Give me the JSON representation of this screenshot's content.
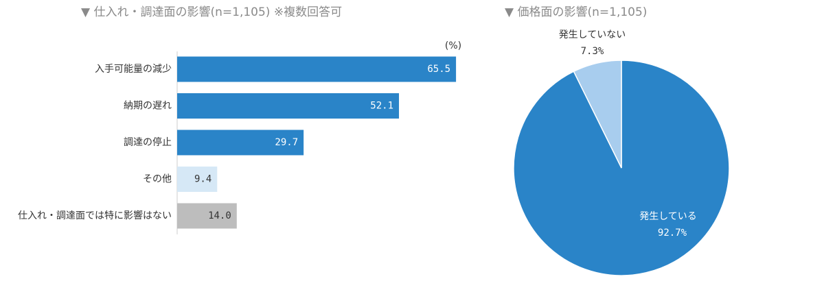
{
  "chart_data": [
    {
      "type": "bar",
      "orientation": "horizontal",
      "title": "▼ 仕入れ・調達面の影響(n=1,105) ※複数回答可",
      "unit_label": "(%)",
      "categories": [
        "入手可能量の減少",
        "納期の遅れ",
        "調達の停止",
        "その他",
        "仕入れ・調達面では特に影響はない"
      ],
      "values": [
        65.5,
        52.1,
        29.7,
        9.4,
        14.0
      ],
      "value_labels": [
        "65.5",
        "52.1",
        "29.7",
        "9.4",
        "14.0"
      ],
      "colors": [
        "#2a84c8",
        "#2a84c8",
        "#2a84c8",
        "#d6e8f6",
        "#bdbdbd"
      ],
      "xlim": [
        0,
        100
      ]
    },
    {
      "type": "pie",
      "title": "▼ 価格面の影響(n=1,105)",
      "categories": [
        "発生している",
        "発生していない"
      ],
      "values": [
        92.7,
        7.3
      ],
      "value_labels": [
        "92.7%",
        "7.3%"
      ],
      "colors": [
        "#2a84c8",
        "#a8cdee"
      ]
    }
  ]
}
